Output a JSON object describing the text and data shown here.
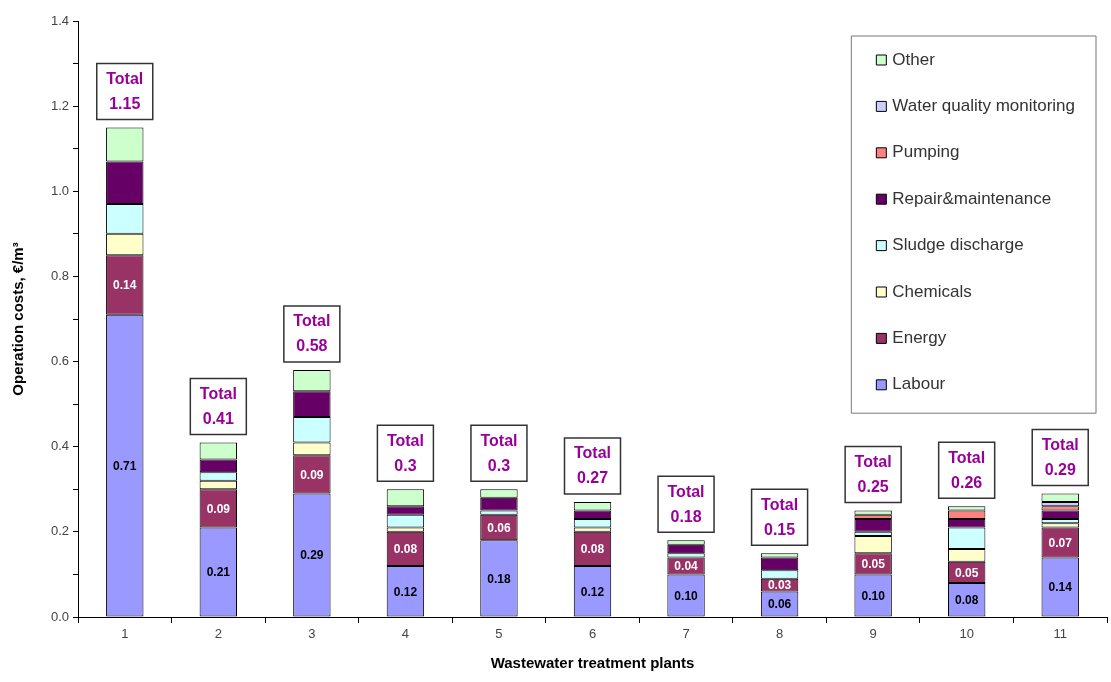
{
  "chart_data": {
    "type": "bar",
    "stacked": true,
    "xlabel": "Wastewater treatment plants",
    "ylabel": "Operation costs, €/m³",
    "categories": [
      "1",
      "2",
      "3",
      "4",
      "5",
      "6",
      "7",
      "8",
      "9",
      "10",
      "11"
    ],
    "ylim": [
      0,
      1.4
    ],
    "yticks": [
      {
        "value": 0,
        "label": "0.0"
      },
      {
        "value": 0.1,
        "label": null
      },
      0.2,
      {
        "value": 0.3,
        "label": null
      },
      0.4,
      {
        "value": 0.5,
        "label": null
      },
      0.6,
      {
        "value": 0.7,
        "label": null
      },
      0.8,
      {
        "value": 0.9,
        "label": null
      },
      {
        "value": 1,
        "label": "1.0"
      },
      {
        "value": 1.1,
        "label": null
      },
      1.2,
      {
        "value": 1.3,
        "label": null
      },
      1.4
    ],
    "legend": "top right",
    "series": [
      {
        "name": "Labour",
        "color": "#9999ff",
        "values": [
          0.71,
          0.21,
          0.29,
          0.12,
          0.18,
          0.12,
          0.1,
          0.06,
          0.1,
          0.08,
          0.14
        ],
        "value_labels": [
          "0.71",
          "0.21",
          "0.29",
          "0.12",
          "0.18",
          "0.12",
          "0.10",
          "0.06",
          "0.10",
          "0.08",
          "0.14"
        ]
      },
      {
        "name": "Energy",
        "color": "#993366",
        "values": [
          0.14,
          0.09,
          0.09,
          0.08,
          0.06,
          0.08,
          0.04,
          0.03,
          0.05,
          0.05,
          0.07
        ],
        "value_labels": [
          "0.14",
          "0.09",
          "0.09",
          "0.08",
          "0.06",
          "0.08",
          "0.04",
          "0.03",
          "0.05",
          "0.05",
          "0.07"
        ]
      },
      {
        "name": "Chemicals",
        "color": "#ffffcc",
        "values": [
          0.05,
          0.02,
          0.03,
          0.01,
          0,
          0.01,
          0,
          0,
          0.04,
          0.03,
          0.01
        ]
      },
      {
        "name": "Sludge discharge",
        "color": "#ccffff",
        "values": [
          0.07,
          0.02,
          0.06,
          0.03,
          0.01,
          0.02,
          0.01,
          0.02,
          0.01,
          0.05,
          0.01
        ]
      },
      {
        "name": "Repair&maintenance",
        "color": "#660066",
        "values": [
          0.1,
          0.03,
          0.06,
          0.02,
          0.03,
          0.02,
          0.02,
          0.03,
          0.03,
          0.02,
          0.02
        ]
      },
      {
        "name": "Pumping",
        "color": "#ff8080",
        "values": [
          0,
          0,
          0,
          0,
          0,
          0,
          0,
          0,
          0.01,
          0.02,
          0.01
        ]
      },
      {
        "name": "Water quality monitoring",
        "color": "#ccccff",
        "values": [
          0,
          0,
          0,
          0,
          0,
          0,
          0,
          0,
          0,
          0,
          0.01
        ]
      },
      {
        "name": "Other",
        "color": "#ccffcc",
        "values": [
          0.08,
          0.04,
          0.05,
          0.04,
          0.02,
          0.02,
          0.01,
          0.01,
          0.01,
          0.01,
          0.02
        ]
      }
    ],
    "totals": [
      "Total 1.15",
      "Total 0.41",
      "Total 0.58",
      "Total 0.3",
      "Total 0.3",
      "Total 0.27",
      "Total 0.18",
      "Total 0.15",
      "Total 0.25",
      "Total 0.26",
      "Total 0.29"
    ]
  }
}
